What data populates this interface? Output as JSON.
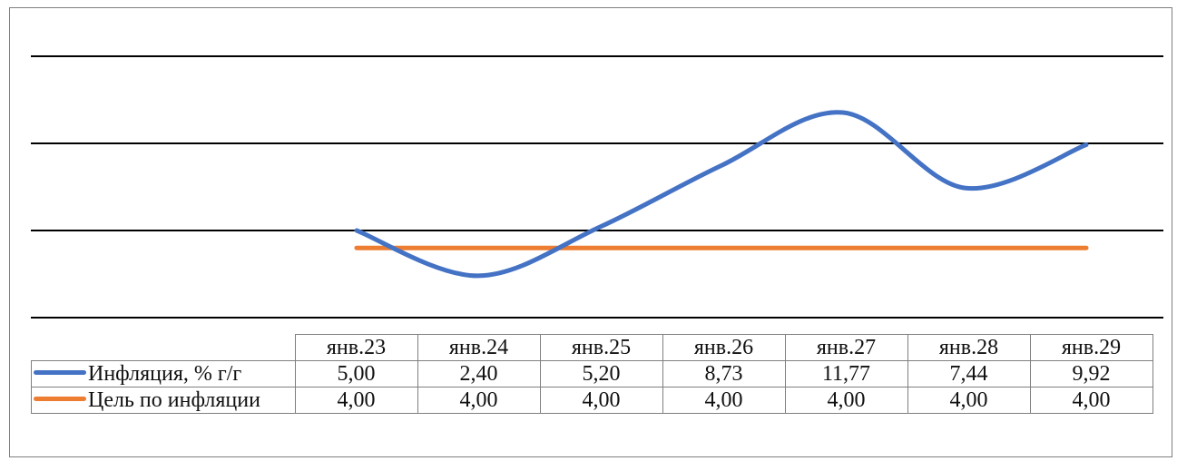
{
  "chart_data": {
    "type": "line",
    "title": "",
    "xlabel": "",
    "ylabel": "",
    "categories": [
      "янв.23",
      "янв.24",
      "янв.25",
      "янв.26",
      "янв.27",
      "янв.28",
      "янв.29"
    ],
    "series": [
      {
        "name": "Инфляция, % г/г",
        "values": [
          "5,00",
          "2,40",
          "5,20",
          "8,73",
          "11,77",
          "7,44",
          "9,92"
        ],
        "color": "#4472c4"
      },
      {
        "name": "Цель по инфляции",
        "values": [
          "4,00",
          "4,00",
          "4,00",
          "4,00",
          "4,00",
          "4,00",
          "4,00"
        ],
        "color": "#ed7d31"
      }
    ],
    "ylim": [
      0,
      15
    ],
    "grid": true,
    "legend": "data-table"
  }
}
